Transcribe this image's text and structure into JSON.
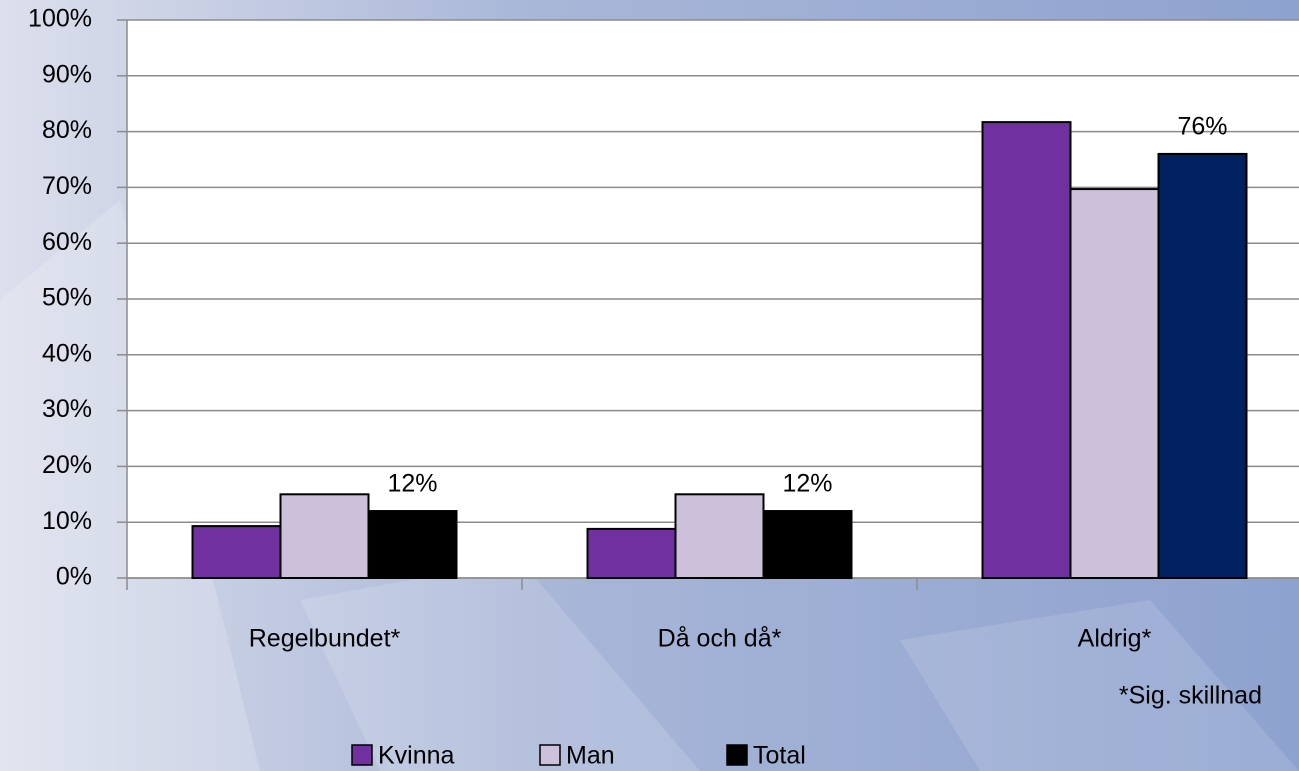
{
  "chart_data": {
    "type": "bar",
    "categories": [
      "Regelbundet*",
      "Då och då*",
      "Aldrig*"
    ],
    "series": [
      {
        "name": "Kvinna",
        "color": "#7030a0",
        "values": [
          9.3,
          8.8,
          81.7
        ]
      },
      {
        "name": "Man",
        "color": "#ccc0da",
        "values": [
          15,
          15,
          69.7
        ]
      },
      {
        "name": "Total",
        "color": "#000000",
        "colors": [
          "#000000",
          "#000000",
          "#002060"
        ],
        "values": [
          12,
          12,
          76
        ],
        "value_labels": [
          "12%",
          "12%",
          "76%"
        ]
      }
    ],
    "ylim": [
      0,
      100
    ],
    "yticks": [
      {
        "value": 0,
        "label": "0%"
      },
      {
        "value": 10,
        "label": "10%"
      },
      {
        "value": 20,
        "label": "20%"
      },
      {
        "value": 30,
        "label": "30%"
      },
      {
        "value": 40,
        "label": "40%"
      },
      {
        "value": 50,
        "label": "50%"
      },
      {
        "value": 60,
        "label": "60%"
      },
      {
        "value": 70,
        "label": "70%"
      },
      {
        "value": 80,
        "label": "80%"
      },
      {
        "value": 90,
        "label": "90%"
      },
      {
        "value": 100,
        "label": "100%"
      }
    ],
    "grid": true,
    "legend": "bottom",
    "annotation": "*Sig. skillnad"
  }
}
